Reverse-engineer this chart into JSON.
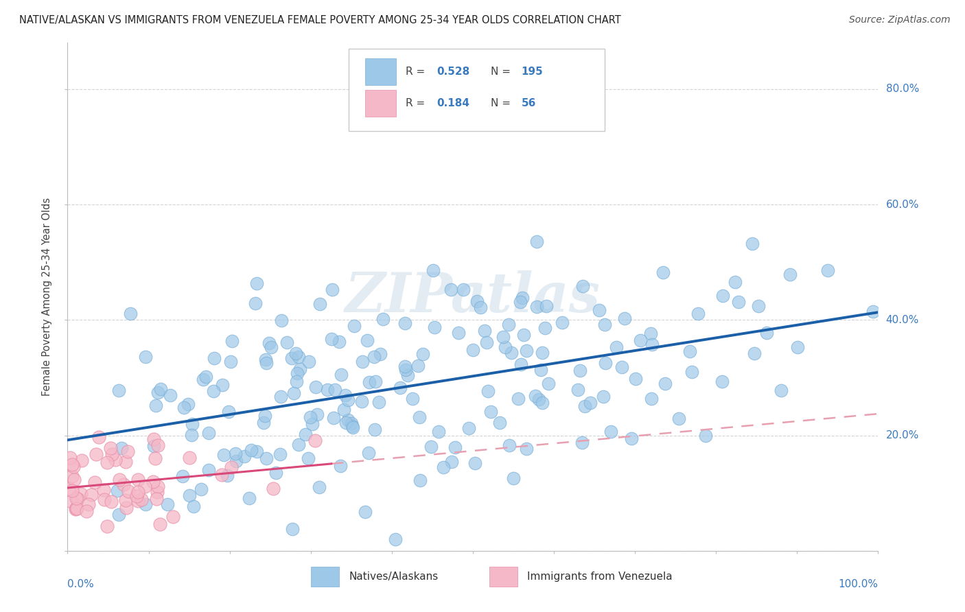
{
  "title": "NATIVE/ALASKAN VS IMMIGRANTS FROM VENEZUELA FEMALE POVERTY AMONG 25-34 YEAR OLDS CORRELATION CHART",
  "source": "Source: ZipAtlas.com",
  "ylabel": "Female Poverty Among 25-34 Year Olds",
  "watermark": "ZIPatlas",
  "background_color": "#ffffff",
  "blue_color": "#9ec8e8",
  "blue_edge_color": "#7ab0d8",
  "pink_color": "#f5b8c8",
  "pink_edge_color": "#e890a8",
  "blue_line_color": "#1a5fa8",
  "pink_line_color": "#d84878",
  "pink_dash_color": "#e8a0b0",
  "r_blue": 0.528,
  "n_blue": 195,
  "r_pink": 0.184,
  "n_pink": 56,
  "legend_color": "#3a7abf",
  "seed_blue": 42,
  "seed_pink": 99
}
